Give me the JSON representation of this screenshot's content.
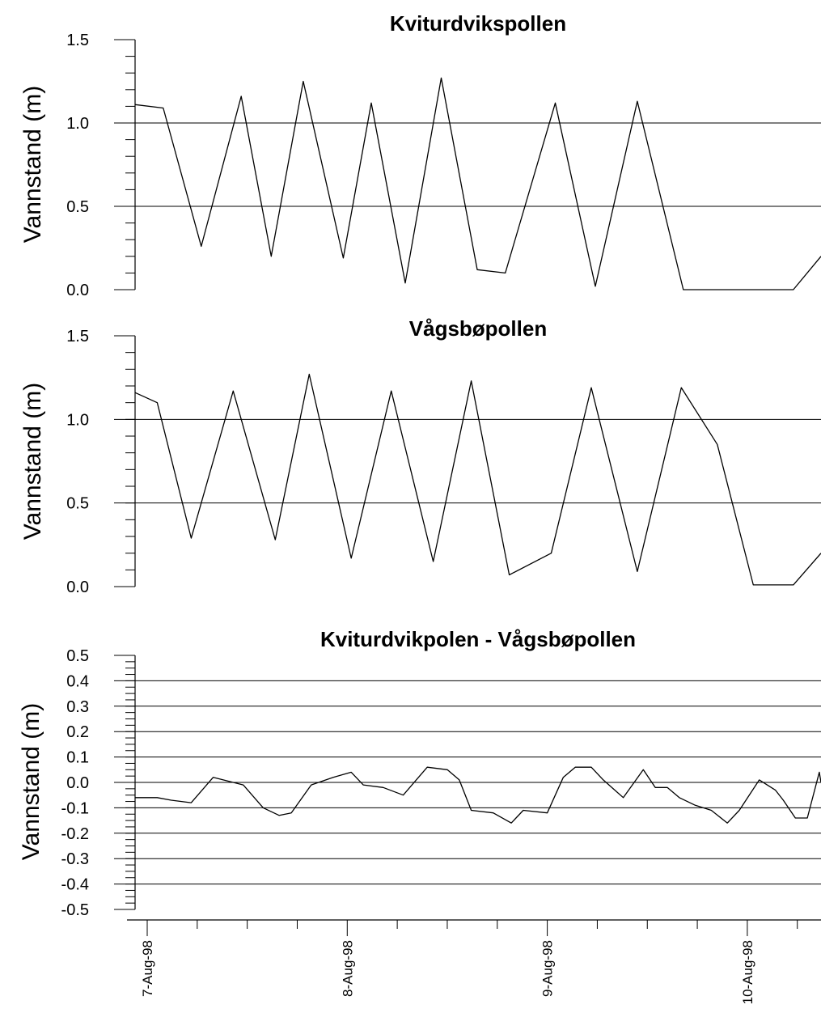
{
  "chart_data": [
    {
      "type": "line",
      "title": "Kviturdvikspollen",
      "ylabel": "Vannstand (m)",
      "ylim": [
        0.0,
        1.5
      ],
      "yticks": [
        "0.0",
        "0.5",
        "1.0",
        "1.5"
      ],
      "grid": "horizontal at 0.5 and 1.0",
      "x_unit": "days since 7-Aug-98 00:00",
      "series": [
        {
          "x": [
            -0.06,
            0.08,
            0.27,
            0.47,
            0.62,
            0.78,
            0.98,
            1.12,
            1.29,
            1.47,
            1.65,
            1.79,
            2.04,
            2.24,
            2.45,
            2.68,
            2.86,
            3.02,
            3.23,
            3.46
          ],
          "y": [
            1.11,
            1.09,
            0.26,
            1.16,
            0.2,
            1.25,
            0.19,
            1.12,
            0.04,
            1.27,
            0.12,
            0.1,
            1.12,
            0.02,
            1.13,
            0.0,
            0.0,
            0.0,
            0.0,
            0.2
          ]
        }
      ]
    },
    {
      "type": "line",
      "title": "Vågsbøpollen",
      "ylabel": "Vannstand (m)",
      "ylim": [
        0.0,
        1.5
      ],
      "yticks": [
        "0.0",
        "0.5",
        "1.0",
        "1.5"
      ],
      "grid": "horizontal at 0.5 and 1.0",
      "x_unit": "days since 7-Aug-98 00:00",
      "series": [
        {
          "x": [
            -0.06,
            0.05,
            0.22,
            0.43,
            0.64,
            0.81,
            1.02,
            1.22,
            1.43,
            1.62,
            1.81,
            2.02,
            2.22,
            2.45,
            2.67,
            2.85,
            3.03,
            3.23,
            3.46
          ],
          "y": [
            1.16,
            1.1,
            0.29,
            1.17,
            0.28,
            1.27,
            0.17,
            1.17,
            0.15,
            1.23,
            0.07,
            0.2,
            1.19,
            0.09,
            1.19,
            0.85,
            0.01,
            0.01,
            0.2
          ]
        }
      ]
    },
    {
      "type": "line",
      "title": "Kviturdvikpolen - Vågsbøpollen",
      "ylabel": "Vannstand (m)",
      "ylim": [
        -0.5,
        0.5
      ],
      "yticks": [
        "-0.5",
        "-0.4",
        "-0.3",
        "-0.2",
        "-0.1",
        "0.0",
        "0.1",
        "0.2",
        "0.3",
        "0.4",
        "0.5"
      ],
      "xticks": [
        "7-Aug-98",
        "8-Aug-98",
        "9-Aug-98",
        "10-Aug-98"
      ],
      "grid": "horizontal at every 0.1",
      "x_unit": "days since 7-Aug-98 00:00",
      "series": [
        {
          "x": [
            -0.06,
            0.05,
            0.12,
            0.22,
            0.33,
            0.48,
            0.58,
            0.66,
            0.72,
            0.82,
            0.93,
            1.02,
            1.08,
            1.18,
            1.28,
            1.4,
            1.5,
            1.56,
            1.62,
            1.73,
            1.82,
            1.88,
            2.0,
            2.08,
            2.14,
            2.22,
            2.28,
            2.38,
            2.48,
            2.54,
            2.6,
            2.66,
            2.74,
            2.82,
            2.9,
            2.96,
            3.06,
            3.14,
            3.18,
            3.24,
            3.3,
            3.36,
            3.46
          ],
          "y": [
            -0.06,
            -0.06,
            -0.07,
            -0.08,
            0.02,
            -0.01,
            -0.1,
            -0.13,
            -0.12,
            -0.01,
            0.02,
            0.04,
            -0.01,
            -0.02,
            -0.05,
            0.06,
            0.05,
            0.01,
            -0.11,
            -0.12,
            -0.16,
            -0.11,
            -0.12,
            0.02,
            0.06,
            0.06,
            0.01,
            -0.06,
            0.05,
            -0.02,
            -0.02,
            -0.06,
            -0.09,
            -0.11,
            -0.16,
            -0.11,
            0.01,
            -0.03,
            -0.07,
            -0.14,
            -0.14,
            0.04,
            0.0
          ]
        }
      ]
    }
  ]
}
